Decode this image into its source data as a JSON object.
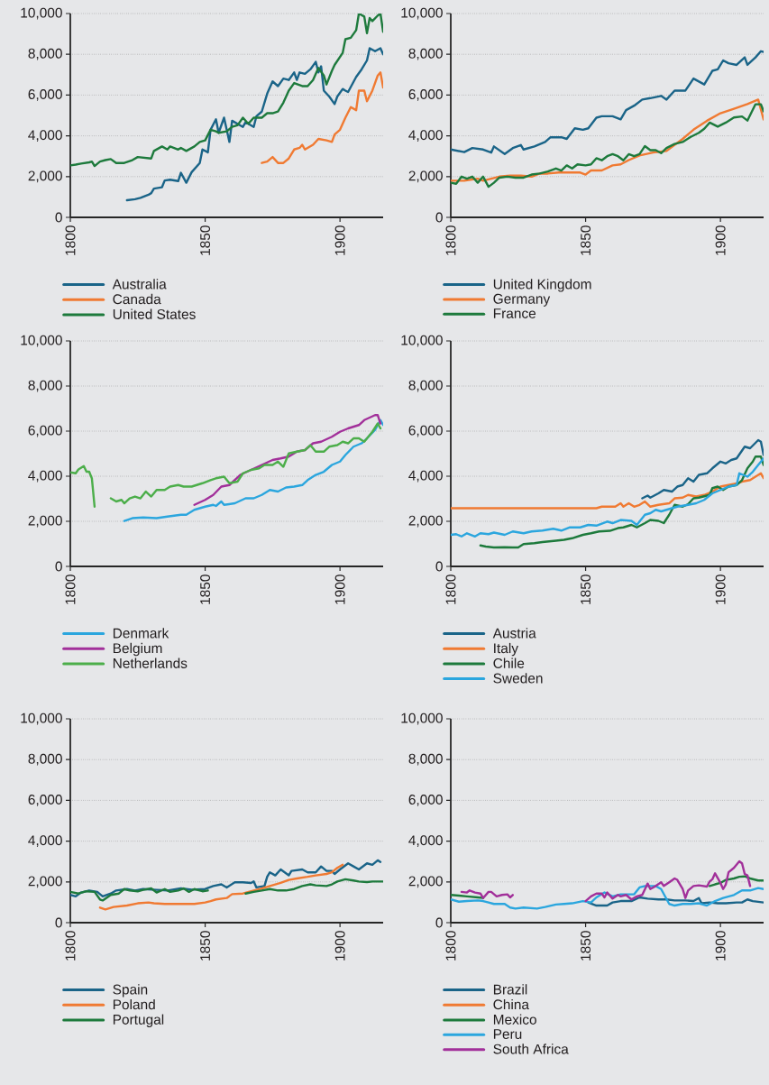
{
  "chart_data": [
    {
      "type": "line",
      "xlim": [
        1800,
        1916
      ],
      "ylim": [
        0,
        10000
      ],
      "xticks": [
        1800,
        1850,
        1900
      ],
      "yticks": [
        0,
        {
          "value": 2000,
          "label": "2,000"
        },
        {
          "value": 4000,
          "label": "4,000"
        },
        {
          "value": 6000,
          "label": "6,000"
        },
        {
          "value": 8000,
          "label": "8,000"
        },
        {
          "value": 10000,
          "label": "10,000"
        }
      ],
      "grid": "y",
      "legend": "bottom",
      "series": [
        {
          "name": "Australia",
          "color": "#1a6488",
          "x": [
            1821,
            1824,
            1826,
            1829,
            1830,
            1831,
            1834,
            1835,
            1837,
            1840,
            1841,
            1843,
            1845,
            1848,
            1849,
            1851,
            1852,
            1854,
            1855,
            1857,
            1859,
            1860,
            1862,
            1864,
            1865,
            1868,
            1869,
            1871,
            1873,
            1875,
            1877,
            1879,
            1881,
            1883,
            1884,
            1885,
            1887,
            1889,
            1891,
            1892,
            1893,
            1894,
            1896,
            1898,
            1899,
            1901,
            1902,
            1903,
            1906,
            1908,
            1910,
            1911,
            1913,
            1915,
            1916
          ],
          "values": [
            840,
            890,
            960,
            1110,
            1190,
            1410,
            1480,
            1810,
            1850,
            1780,
            2190,
            1700,
            2220,
            2670,
            3330,
            3190,
            4300,
            4810,
            4150,
            4890,
            3700,
            4740,
            4590,
            4440,
            4670,
            4440,
            4960,
            5190,
            6070,
            6670,
            6440,
            6810,
            6740,
            7110,
            6740,
            7110,
            7040,
            7260,
            7630,
            7110,
            7410,
            6220,
            5930,
            5560,
            5930,
            6300,
            6220,
            6150,
            6890,
            7260,
            7700,
            8300,
            8150,
            8300,
            8000
          ]
        },
        {
          "name": "Canada",
          "color": "#f07a32",
          "x": [
            1871,
            1873,
            1875,
            1877,
            1879,
            1881,
            1883,
            1885,
            1886,
            1887,
            1890,
            1892,
            1895,
            1897,
            1898,
            1900,
            1902,
            1904,
            1906,
            1907,
            1909,
            1910,
            1912,
            1914,
            1915,
            1916
          ],
          "values": [
            2670,
            2740,
            2960,
            2670,
            2670,
            2890,
            3330,
            3410,
            3560,
            3330,
            3560,
            3850,
            3780,
            3700,
            4070,
            4300,
            4890,
            5410,
            5260,
            6220,
            6220,
            5700,
            6220,
            6960,
            7110,
            6370
          ]
        },
        {
          "name": "United States",
          "color": "#1d7a3c",
          "x": [
            1800,
            1802,
            1804,
            1807,
            1808,
            1809,
            1811,
            1813,
            1815,
            1817,
            1820,
            1823,
            1825,
            1830,
            1831,
            1834,
            1836,
            1837,
            1840,
            1841,
            1843,
            1846,
            1848,
            1850,
            1852,
            1854,
            1855,
            1858,
            1860,
            1862,
            1864,
            1866,
            1868,
            1871,
            1873,
            1875,
            1877,
            1879,
            1881,
            1883,
            1886,
            1888,
            1890,
            1892,
            1894,
            1895,
            1897,
            1898,
            1901,
            1902,
            1904,
            1906,
            1907,
            1909,
            1910,
            1911,
            1912,
            1914,
            1915,
            1916
          ],
          "values": [
            2550,
            2590,
            2640,
            2700,
            2740,
            2520,
            2740,
            2810,
            2860,
            2670,
            2670,
            2810,
            2960,
            2890,
            3260,
            3480,
            3330,
            3480,
            3330,
            3410,
            3260,
            3480,
            3700,
            3780,
            4300,
            4220,
            4150,
            4220,
            4440,
            4520,
            4890,
            4590,
            4890,
            4890,
            5110,
            5110,
            5190,
            5630,
            6220,
            6590,
            6440,
            6440,
            6740,
            7330,
            6960,
            6520,
            7190,
            7480,
            8070,
            8740,
            8810,
            9190,
            10000,
            9850,
            9040,
            9780,
            9630,
            9900,
            10000,
            9100
          ]
        }
      ]
    },
    {
      "type": "line",
      "xlim": [
        1800,
        1916
      ],
      "ylim": [
        0,
        10000
      ],
      "xticks": [
        1800,
        1850,
        1900
      ],
      "yticks": [
        0,
        {
          "value": 2000,
          "label": "2,000"
        },
        {
          "value": 4000,
          "label": "4,000"
        },
        {
          "value": 6000,
          "label": "6,000"
        },
        {
          "value": 8000,
          "label": "8,000"
        },
        {
          "value": 10000,
          "label": "10,000"
        }
      ],
      "grid": "y",
      "legend": "bottom",
      "series": [
        {
          "name": "United Kingdom",
          "color": "#1a6488",
          "x": [
            1800,
            1805,
            1808,
            1812,
            1815,
            1816,
            1820,
            1823,
            1826,
            1827,
            1831,
            1835,
            1837,
            1841,
            1843,
            1846,
            1849,
            1851,
            1854,
            1856,
            1860,
            1863,
            1865,
            1868,
            1871,
            1874,
            1878,
            1880,
            1883,
            1887,
            1890,
            1894,
            1897,
            1899,
            1901,
            1903,
            1906,
            1909,
            1910,
            1913,
            1915,
            1916
          ],
          "values": [
            3330,
            3200,
            3400,
            3330,
            3180,
            3480,
            3110,
            3400,
            3550,
            3330,
            3480,
            3700,
            3930,
            3930,
            3850,
            4370,
            4300,
            4370,
            4890,
            4960,
            4960,
            4810,
            5260,
            5480,
            5780,
            5850,
            5960,
            5780,
            6220,
            6220,
            6810,
            6520,
            7190,
            7260,
            7700,
            7560,
            7480,
            7850,
            7480,
            7850,
            8150,
            8120
          ]
        },
        {
          "name": "Germany",
          "color": "#f07a32",
          "x": [
            1800,
            1805,
            1810,
            1812,
            1815,
            1818,
            1822,
            1826,
            1830,
            1833,
            1836,
            1840,
            1844,
            1848,
            1850,
            1852,
            1856,
            1860,
            1863,
            1866,
            1870,
            1875,
            1880,
            1886,
            1890,
            1895,
            1900,
            1905,
            1910,
            1914,
            1916
          ],
          "values": [
            1800,
            1800,
            1900,
            1800,
            1900,
            2000,
            2050,
            2050,
            2000,
            2150,
            2150,
            2200,
            2200,
            2200,
            2100,
            2300,
            2300,
            2550,
            2600,
            2810,
            3040,
            3180,
            3260,
            3850,
            4300,
            4740,
            5110,
            5330,
            5560,
            5780,
            4800
          ]
        },
        {
          "name": "France",
          "color": "#1d7a3c",
          "x": [
            1800,
            1802,
            1804,
            1806,
            1808,
            1810,
            1812,
            1814,
            1816,
            1818,
            1821,
            1824,
            1827,
            1830,
            1833,
            1836,
            1839,
            1841,
            1843,
            1845,
            1847,
            1850,
            1852,
            1854,
            1856,
            1858,
            1860,
            1862,
            1864,
            1866,
            1868,
            1870,
            1872,
            1874,
            1876,
            1878,
            1880,
            1883,
            1886,
            1889,
            1892,
            1894,
            1896,
            1899,
            1902,
            1905,
            1908,
            1910,
            1913,
            1915,
            1916
          ],
          "values": [
            1700,
            1650,
            2000,
            1900,
            2000,
            1700,
            2000,
            1500,
            1700,
            1950,
            2000,
            1950,
            1950,
            2100,
            2150,
            2250,
            2400,
            2300,
            2550,
            2400,
            2600,
            2550,
            2600,
            2900,
            2800,
            3000,
            3100,
            3000,
            2800,
            3100,
            3000,
            3100,
            3500,
            3300,
            3300,
            3150,
            3400,
            3600,
            3700,
            3950,
            4150,
            4350,
            4650,
            4450,
            4650,
            4900,
            4950,
            4750,
            5550,
            5550,
            5200
          ]
        }
      ]
    },
    {
      "type": "line",
      "xlim": [
        1800,
        1916
      ],
      "ylim": [
        0,
        10000
      ],
      "xticks": [
        1800,
        1850,
        1900
      ],
      "yticks": [
        0,
        {
          "value": 2000,
          "label": "2,000"
        },
        {
          "value": 4000,
          "label": "4,000"
        },
        {
          "value": 6000,
          "label": "6,000"
        },
        {
          "value": 8000,
          "label": "8,000"
        },
        {
          "value": 10000,
          "label": "10,000"
        }
      ],
      "grid": "y",
      "legend": "bottom",
      "series": [
        {
          "name": "Denmark",
          "color": "#2ba6de",
          "x": [
            1820,
            1823,
            1827,
            1832,
            1836,
            1841,
            1843,
            1846,
            1850,
            1853,
            1854,
            1856,
            1857,
            1861,
            1865,
            1868,
            1871,
            1874,
            1877,
            1880,
            1883,
            1886,
            1888,
            1891,
            1894,
            1897,
            1900,
            1902,
            1905,
            1908,
            1910,
            1913,
            1915,
            1916
          ],
          "values": [
            2020,
            2140,
            2170,
            2140,
            2210,
            2290,
            2290,
            2510,
            2650,
            2730,
            2680,
            2880,
            2730,
            2800,
            3020,
            3020,
            3170,
            3390,
            3320,
            3500,
            3540,
            3610,
            3830,
            4060,
            4200,
            4500,
            4650,
            4940,
            5310,
            5460,
            5680,
            6050,
            6490,
            6270
          ]
        },
        {
          "name": "Belgium",
          "color": "#a2309a",
          "x": [
            1846,
            1850,
            1853,
            1856,
            1859,
            1863,
            1867,
            1871,
            1875,
            1878,
            1881,
            1884,
            1887,
            1890,
            1893,
            1897,
            1900,
            1903,
            1907,
            1909,
            1913,
            1914,
            1915
          ],
          "values": [
            2730,
            2950,
            3170,
            3540,
            3610,
            4060,
            4280,
            4500,
            4720,
            4790,
            4870,
            5090,
            5160,
            5460,
            5530,
            5750,
            5970,
            6120,
            6270,
            6490,
            6710,
            6710,
            6340
          ]
        },
        {
          "name": "Netherlands",
          "color": "#4cae4a",
          "x": [
            1800,
            1802,
            1803,
            1805,
            1806,
            1807,
            1808,
            1809,
            1812,
            1815,
            1817,
            1819,
            1820,
            1822,
            1824,
            1826,
            1828,
            1830,
            1832,
            1835,
            1837,
            1840,
            1842,
            1845,
            1849,
            1852,
            1854,
            1857,
            1859,
            1862,
            1864,
            1867,
            1870,
            1872,
            1875,
            1877,
            1879,
            1881,
            1884,
            1887,
            1889,
            1891,
            1894,
            1896,
            1899,
            1901,
            1903,
            1905,
            1907,
            1909,
            1912,
            1914,
            1915
          ],
          "values": [
            4170,
            4130,
            4300,
            4450,
            4200,
            4200,
            3900,
            2650,
            null,
            3020,
            2880,
            2950,
            2800,
            3020,
            3100,
            3020,
            3320,
            3100,
            3390,
            3390,
            3540,
            3610,
            3540,
            3540,
            3690,
            3830,
            3910,
            3980,
            3690,
            3760,
            4130,
            4280,
            4350,
            4500,
            4500,
            4650,
            4420,
            5010,
            5090,
            5160,
            5380,
            5090,
            5090,
            5310,
            5380,
            5530,
            5460,
            5680,
            5680,
            5530,
            5970,
            6340,
            6120
          ]
        }
      ]
    },
    {
      "type": "line",
      "xlim": [
        1800,
        1916
      ],
      "ylim": [
        0,
        10000
      ],
      "xticks": [
        1800,
        1850,
        1900
      ],
      "yticks": [
        0,
        {
          "value": 2000,
          "label": "2,000"
        },
        {
          "value": 4000,
          "label": "4,000"
        },
        {
          "value": 6000,
          "label": "6,000"
        },
        {
          "value": 8000,
          "label": "8,000"
        },
        {
          "value": 10000,
          "label": "10,000"
        }
      ],
      "grid": "y",
      "legend": "bottom",
      "series": [
        {
          "name": "Austria",
          "color": "#1a6488",
          "x": [
            1871,
            1873,
            1874,
            1877,
            1879,
            1882,
            1884,
            1886,
            1888,
            1890,
            1892,
            1895,
            1897,
            1900,
            1902,
            1904,
            1906,
            1909,
            1911,
            1914,
            1915,
            1916
          ],
          "values": [
            3020,
            3140,
            3050,
            3240,
            3390,
            3320,
            3540,
            3610,
            3910,
            3760,
            4060,
            4130,
            4350,
            4650,
            4570,
            4720,
            4790,
            5310,
            5240,
            5600,
            5530,
            4940
          ]
        },
        {
          "name": "Italy",
          "color": "#f07a32",
          "x": [
            1800,
            1854,
            1856,
            1861,
            1863,
            1864,
            1866,
            1868,
            1870,
            1872,
            1874,
            1877,
            1881,
            1883,
            1886,
            1888,
            1891,
            1894,
            1897,
            1900,
            1903,
            1906,
            1908,
            1911,
            1913,
            1915,
            1916
          ],
          "values": [
            2580,
            2580,
            2650,
            2650,
            2800,
            2650,
            2800,
            2650,
            2730,
            2880,
            2650,
            2730,
            2800,
            3020,
            3050,
            3170,
            3100,
            3170,
            3320,
            3540,
            3610,
            3680,
            3760,
            3830,
            3980,
            4130,
            3910
          ]
        },
        {
          "name": "Chile",
          "color": "#1d7a3c",
          "x": [
            1811,
            1813,
            1816,
            1820,
            1823,
            1825,
            1827,
            1831,
            1834,
            1839,
            1842,
            1845,
            1849,
            1852,
            1855,
            1859,
            1862,
            1864,
            1867,
            1869,
            1872,
            1874,
            1877,
            1879,
            1881,
            1883,
            1886,
            1888,
            1890,
            1892,
            1896,
            1897,
            1899,
            1901,
            1903,
            1906,
            1908,
            1910,
            1912,
            1913,
            1915,
            1916
          ],
          "values": [
            930,
            880,
            840,
            850,
            840,
            840,
            990,
            1030,
            1080,
            1140,
            1180,
            1250,
            1400,
            1470,
            1550,
            1580,
            1700,
            1730,
            1840,
            1730,
            1920,
            2060,
            2020,
            1920,
            2290,
            2730,
            2650,
            2760,
            3020,
            3050,
            3170,
            3470,
            3540,
            3390,
            3540,
            3610,
            3830,
            4350,
            4650,
            4870,
            4870,
            4500
          ]
        },
        {
          "name": "Sweden",
          "color": "#2ba6de",
          "x": [
            1800,
            1802,
            1804,
            1806,
            1809,
            1811,
            1814,
            1816,
            1820,
            1823,
            1827,
            1830,
            1834,
            1838,
            1841,
            1844,
            1848,
            1851,
            1854,
            1858,
            1860,
            1863,
            1867,
            1869,
            1872,
            1874,
            1876,
            1878,
            1882,
            1884,
            1888,
            1891,
            1894,
            1897,
            1900,
            1903,
            1906,
            1907,
            1910,
            1912,
            1914,
            1916
          ],
          "values": [
            1400,
            1430,
            1330,
            1470,
            1330,
            1470,
            1430,
            1500,
            1400,
            1550,
            1470,
            1550,
            1590,
            1670,
            1590,
            1730,
            1730,
            1840,
            1810,
            1990,
            1920,
            2060,
            2020,
            1840,
            2290,
            2360,
            2510,
            2440,
            2580,
            2650,
            2730,
            2800,
            2950,
            3240,
            3390,
            3540,
            3610,
            4130,
            3980,
            4200,
            4500,
            4790
          ]
        }
      ]
    },
    {
      "type": "line",
      "xlim": [
        1800,
        1916
      ],
      "ylim": [
        0,
        10000
      ],
      "xticks": [
        1800,
        1850,
        1900
      ],
      "yticks": [
        0,
        {
          "value": 2000,
          "label": "2,000"
        },
        {
          "value": 4000,
          "label": "4,000"
        },
        {
          "value": 6000,
          "label": "6,000"
        },
        {
          "value": 8000,
          "label": "8,000"
        },
        {
          "value": 10000,
          "label": "10,000"
        }
      ],
      "grid": "y",
      "legend": "bottom",
      "series": [
        {
          "name": "Spain",
          "color": "#1a6488",
          "x": [
            1800,
            1802,
            1804,
            1807,
            1810,
            1812,
            1815,
            1817,
            1821,
            1824,
            1827,
            1832,
            1836,
            1841,
            1845,
            1850,
            1853,
            1856,
            1858,
            1861,
            1864,
            1867,
            1868,
            1869,
            1872,
            1873,
            1874,
            1876,
            1878,
            1881,
            1882,
            1886,
            1888,
            1891,
            1893,
            1895,
            1897,
            1898,
            1900,
            1903,
            1905,
            1907,
            1910,
            1912,
            1914,
            1915
          ],
          "values": [
            1360,
            1290,
            1480,
            1580,
            1510,
            1290,
            1430,
            1580,
            1650,
            1580,
            1650,
            1610,
            1580,
            1680,
            1620,
            1650,
            1800,
            1880,
            1730,
            1980,
            1980,
            1950,
            2020,
            1730,
            1800,
            2250,
            2470,
            2320,
            2610,
            2320,
            2540,
            2610,
            2470,
            2470,
            2760,
            2540,
            2540,
            2390,
            2610,
            2910,
            2760,
            2610,
            2910,
            2840,
            3060,
            2980
          ]
        },
        {
          "name": "Poland",
          "color": "#f07a32",
          "x": [
            1811,
            1813,
            1816,
            1821,
            1825,
            1829,
            1831,
            1835,
            1841,
            1846,
            1850,
            1852,
            1854,
            1858,
            1860,
            1864,
            1868,
            1871,
            1874,
            1878,
            1881,
            1884,
            1888,
            1891,
            1895,
            1897,
            1899,
            1901
          ],
          "values": [
            740,
            650,
            770,
            840,
            950,
            990,
            950,
            920,
            920,
            920,
            990,
            1060,
            1140,
            1210,
            1400,
            1430,
            1580,
            1680,
            1800,
            1950,
            2100,
            2170,
            2250,
            2320,
            2390,
            2470,
            2690,
            2840
          ]
        },
        {
          "name": "Portugal",
          "color": "#1d7a3c",
          "x": [
            1800,
            1803,
            1806,
            1809,
            1811,
            1812,
            1815,
            1818,
            1820,
            1822,
            1825,
            1827,
            1830,
            1832,
            1835,
            1837,
            1840,
            1842,
            1844,
            1846,
            1849,
            1851,
            1858,
            1865,
            1868,
            1871,
            1874,
            1877,
            1880,
            1883,
            1886,
            1889,
            1891,
            1895,
            1897,
            1899,
            1902,
            1905,
            1907,
            1910,
            1912,
            1916
          ],
          "values": [
            1510,
            1430,
            1540,
            1510,
            1140,
            1090,
            1360,
            1430,
            1650,
            1580,
            1540,
            1610,
            1680,
            1480,
            1650,
            1510,
            1580,
            1680,
            1510,
            1650,
            1540,
            1580,
            null,
            1430,
            1510,
            1580,
            1650,
            1580,
            1580,
            1650,
            1800,
            1880,
            1830,
            1800,
            1880,
            2020,
            2130,
            2070,
            2020,
            1990,
            2020,
            2020
          ]
        }
      ]
    },
    {
      "type": "line",
      "xlim": [
        1800,
        1916
      ],
      "ylim": [
        0,
        10000
      ],
      "xticks": [
        1800,
        1850,
        1900
      ],
      "yticks": [
        0,
        {
          "value": 2000,
          "label": "2,000"
        },
        {
          "value": 4000,
          "label": "4,000"
        },
        {
          "value": 6000,
          "label": "6,000"
        },
        {
          "value": 8000,
          "label": "8,000"
        },
        {
          "value": 10000,
          "label": "10,000"
        }
      ],
      "grid": "y",
      "legend": "bottom",
      "series": [
        {
          "name": "Brazil",
          "color": "#1a6488",
          "x": [
            1851,
            1854,
            1858,
            1860,
            1863,
            1867,
            1870,
            1873,
            1877,
            1880,
            1883,
            1887,
            1890,
            1892,
            1893,
            1896,
            1899,
            1902,
            1906,
            1908,
            1910,
            1912,
            1916
          ],
          "values": [
            990,
            840,
            840,
            990,
            1060,
            1060,
            1240,
            1180,
            1140,
            1140,
            1090,
            1090,
            1060,
            1210,
            950,
            990,
            950,
            950,
            990,
            990,
            1140,
            1060,
            990
          ]
        },
        {
          "name": "China",
          "color": "#f07a32"
        },
        {
          "name": "Mexico",
          "color": "#1d7a3c",
          "x": [
            1800,
            1803,
            1806,
            1810,
            1812,
            1854,
            1896,
            1898,
            1900,
            1902,
            1905,
            1907,
            1909,
            1911,
            1914,
            1916
          ],
          "values": [
            1360,
            1330,
            1290,
            1240,
            1210,
            null,
            1800,
            1880,
            1950,
            2100,
            2170,
            2250,
            2270,
            2170,
            2070,
            2070
          ]
        },
        {
          "name": "Peru",
          "color": "#2ba6de",
          "x": [
            1800,
            1803,
            1806,
            1810,
            1812,
            1814,
            1816,
            1820,
            1822,
            1824,
            1827,
            1832,
            1835,
            1839,
            1842,
            1845,
            1849,
            1852,
            1854,
            1857,
            1860,
            1863,
            1868,
            1870,
            1872,
            1876,
            1878,
            1881,
            1883,
            1886,
            1889,
            1892,
            1895,
            1898,
            1901,
            1905,
            1908,
            1911,
            1914,
            1916
          ],
          "values": [
            1140,
            1030,
            1060,
            1090,
            1060,
            990,
            920,
            920,
            740,
            690,
            740,
            690,
            770,
            890,
            920,
            950,
            1060,
            990,
            1240,
            1480,
            1290,
            1390,
            1390,
            1730,
            1800,
            1800,
            1650,
            920,
            840,
            920,
            920,
            950,
            840,
            1060,
            1210,
            1360,
            1580,
            1580,
            1700,
            1650
          ]
        },
        {
          "name": "South Africa",
          "color": "#a2309a",
          "x": [
            1804,
            1806,
            1807,
            1809,
            1811,
            1812,
            1814,
            1815,
            1817,
            1819,
            1821,
            1822,
            1823,
            1835,
            1850,
            1852,
            1854,
            1856,
            1857,
            1858,
            1860,
            1862,
            1863,
            1865,
            1867,
            1869,
            1871,
            1873,
            1874,
            1876,
            1878,
            1879,
            1881,
            1883,
            1884,
            1886,
            1887,
            1888,
            1890,
            1892,
            1895,
            1896,
            1897,
            1898,
            1900,
            1901,
            1902,
            1903,
            1905,
            1907,
            1908,
            1909,
            1910,
            1911
          ],
          "values": [
            1510,
            1480,
            1580,
            1480,
            1430,
            1210,
            1510,
            1510,
            1290,
            1360,
            1390,
            1240,
            1360,
            null,
            1060,
            1290,
            1430,
            1430,
            1240,
            1480,
            1180,
            1360,
            1290,
            1360,
            1140,
            1290,
            1360,
            1920,
            1650,
            1800,
            1980,
            1800,
            1980,
            2170,
            2100,
            1650,
            1210,
            1580,
            1800,
            1830,
            1770,
            2020,
            2130,
            2420,
            1950,
            1650,
            1880,
            2470,
            2690,
            3010,
            2910,
            2390,
            2320,
            1800
          ]
        }
      ]
    }
  ]
}
